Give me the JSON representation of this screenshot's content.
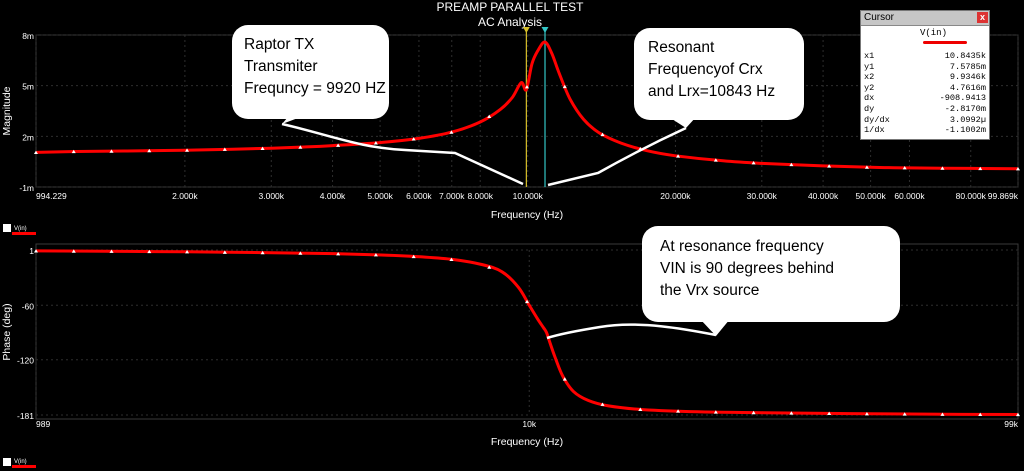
{
  "title_line1": "PREAMP PARALLEL TEST",
  "title_line2": "AC Analysis",
  "cursor_window": {
    "title": "Cursor",
    "close": "x",
    "signal": "V(in)",
    "rows": [
      {
        "label": "x1",
        "value": "10.8435k"
      },
      {
        "label": "y1",
        "value": "7.5785m"
      },
      {
        "label": "x2",
        "value": "9.9346k"
      },
      {
        "label": "y2",
        "value": "4.7616m"
      },
      {
        "label": "dx",
        "value": "-908.9413"
      },
      {
        "label": "dy",
        "value": "-2.8170m"
      },
      {
        "label": "dy/dx",
        "value": "3.0992µ"
      },
      {
        "label": "1/dx",
        "value": "-1.1002m"
      }
    ]
  },
  "annotations": {
    "raptor": [
      "Raptor TX",
      "Transmiter",
      "Frequncy = 9920 HZ"
    ],
    "resonant": [
      "Resonant",
      "Frequencyof Crx",
      "and Lrx=10843 Hz"
    ],
    "resonance": [
      "At resonance frequency",
      "VIN is 90 degrees behind",
      "the Vrx source"
    ]
  },
  "chart_data": [
    {
      "type": "line",
      "xscale": "log",
      "xlim": [
        994.229,
        99869
      ],
      "ylim": [
        -0.001,
        0.008
      ],
      "xlabel": "Frequency (Hz)",
      "ylabel": "Magnitude",
      "yticks": [
        {
          "v": 0.008,
          "label": "8m"
        },
        {
          "v": 0.005,
          "label": "5m"
        },
        {
          "v": 0.002,
          "label": "2m"
        },
        {
          "v": -0.001,
          "label": "-1m"
        }
      ],
      "xticks": [
        {
          "v": 994.229,
          "label": "994.229"
        },
        {
          "v": 2000,
          "label": "2.000k"
        },
        {
          "v": 3000,
          "label": "3.000k"
        },
        {
          "v": 4000,
          "label": "4.000k"
        },
        {
          "v": 5000,
          "label": "5.000k"
        },
        {
          "v": 6000,
          "label": "6.000k"
        },
        {
          "v": 7000,
          "label": "7.000k"
        },
        {
          "v": 8000,
          "label": "8.000k"
        },
        {
          "v": 10000,
          "label": "10.000k"
        },
        {
          "v": 20000,
          "label": "20.000k"
        },
        {
          "v": 30000,
          "label": "30.000k"
        },
        {
          "v": 40000,
          "label": "40.000k"
        },
        {
          "v": 50000,
          "label": "50.000k"
        },
        {
          "v": 60000,
          "label": "60.000k"
        },
        {
          "v": 80000,
          "label": "80.000k"
        },
        {
          "v": 99869,
          "label": "99.869k"
        }
      ],
      "grid": true,
      "series": [
        {
          "name": "V(in)",
          "color": "#ff0000",
          "x": [
            994,
            1200,
            1500,
            2000,
            2500,
            3000,
            3500,
            4000,
            5000,
            6000,
            7000,
            8000,
            8800,
            9300,
            9700,
            9934,
            10200,
            10500,
            10843,
            11200,
            11600,
            12200,
            13000,
            14000,
            15500,
            17500,
            20000,
            25000,
            30000,
            40000,
            50000,
            60000,
            80000,
            99869
          ],
          "y": [
            0.00105,
            0.0011,
            0.00113,
            0.00118,
            0.00124,
            0.0013,
            0.00137,
            0.00145,
            0.00163,
            0.00188,
            0.00225,
            0.00285,
            0.0036,
            0.0043,
            0.00518,
            0.00476,
            0.0063,
            0.0071,
            0.00758,
            0.0069,
            0.0057,
            0.0042,
            0.003,
            0.0022,
            0.0016,
            0.00115,
            0.00085,
            0.00055,
            0.0004,
            0.00025,
            0.00017,
            0.00013,
            0.0001,
            8e-05
          ]
        }
      ],
      "cursors": [
        {
          "name": "x2",
          "x": 9934.6,
          "color": "#d7c02a"
        },
        {
          "name": "x1",
          "x": 10843.5,
          "color": "#33c6c6"
        }
      ],
      "legend": {
        "label": "V(in)",
        "color": "#ff0000"
      }
    },
    {
      "type": "line",
      "xscale": "log",
      "xlim": [
        989,
        99000
      ],
      "ylim": [
        -181,
        1
      ],
      "xlabel": "Frequency (Hz)",
      "ylabel": "Phase (deg)",
      "yticks": [
        {
          "v": 1,
          "label": "1"
        },
        {
          "v": -60,
          "label": "-60"
        },
        {
          "v": -120,
          "label": "-120"
        },
        {
          "v": -181,
          "label": "-181"
        }
      ],
      "xticks": [
        {
          "v": 989,
          "label": "989"
        },
        {
          "v": 10000,
          "label": "10k"
        },
        {
          "v": 99000,
          "label": "99k"
        }
      ],
      "grid": true,
      "series": [
        {
          "name": "V(in)",
          "color": "#ff0000",
          "x": [
            989,
            1500,
            2000,
            3000,
            4000,
            5000,
            6000,
            7000,
            8000,
            8800,
            9500,
            10000,
            10400,
            10700,
            10843,
            11000,
            11300,
            11700,
            12300,
            13200,
            14500,
            17000,
            22000,
            30000,
            45000,
            70000,
            99000
          ],
          "y": [
            0,
            -0.5,
            -1,
            -2,
            -3,
            -4.5,
            -6.5,
            -9.5,
            -15,
            -23,
            -40,
            -60,
            -75,
            -85,
            -90,
            -100,
            -118,
            -138,
            -155,
            -165,
            -171,
            -175,
            -177.5,
            -178.5,
            -179.5,
            -180.2,
            -180.5
          ]
        }
      ],
      "legend": {
        "label": "V(in)",
        "color": "#ff0000"
      }
    }
  ]
}
